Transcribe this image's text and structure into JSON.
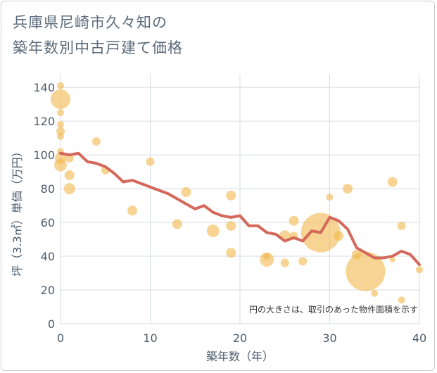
{
  "title_line1": "兵庫県尼崎市久々知の",
  "title_line2": "築年数別中古戸建て価格",
  "chart_data": {
    "type": "scatter",
    "xlabel": "築年数（年）",
    "ylabel": "坪（3.3㎡）単価（万円）",
    "xlim": [
      0,
      40
    ],
    "ylim": [
      0,
      148
    ],
    "xticks": [
      0,
      10,
      20,
      30,
      40
    ],
    "yticks": [
      0,
      20,
      40,
      60,
      80,
      100,
      120,
      140
    ],
    "annotation": "円の大きさは、取引のあった物件面積を示す",
    "colors": {
      "bubble": "#f2b84b",
      "line": "#d4685a",
      "grid": "#d6dde4",
      "text": "#4a5a6a"
    },
    "bubbles": [
      {
        "x": 0,
        "y": 141,
        "s": 5
      },
      {
        "x": 0,
        "y": 133,
        "s": 14
      },
      {
        "x": 0,
        "y": 125,
        "s": 5
      },
      {
        "x": 0,
        "y": 118,
        "s": 5
      },
      {
        "x": 0,
        "y": 114,
        "s": 6
      },
      {
        "x": 0,
        "y": 111,
        "s": 5
      },
      {
        "x": 0,
        "y": 102,
        "s": 5
      },
      {
        "x": 0,
        "y": 98,
        "s": 8
      },
      {
        "x": 0,
        "y": 94,
        "s": 9
      },
      {
        "x": 1,
        "y": 98,
        "s": 6
      },
      {
        "x": 1,
        "y": 88,
        "s": 7
      },
      {
        "x": 1,
        "y": 80,
        "s": 8
      },
      {
        "x": 4,
        "y": 108,
        "s": 6
      },
      {
        "x": 5,
        "y": 91,
        "s": 6
      },
      {
        "x": 8,
        "y": 67,
        "s": 7
      },
      {
        "x": 10,
        "y": 96,
        "s": 6
      },
      {
        "x": 13,
        "y": 59,
        "s": 7
      },
      {
        "x": 14,
        "y": 78,
        "s": 7
      },
      {
        "x": 17,
        "y": 55,
        "s": 9
      },
      {
        "x": 19,
        "y": 76,
        "s": 7
      },
      {
        "x": 19,
        "y": 58,
        "s": 7
      },
      {
        "x": 19,
        "y": 42,
        "s": 7
      },
      {
        "x": 23,
        "y": 38,
        "s": 10
      },
      {
        "x": 23,
        "y": 40,
        "s": 5
      },
      {
        "x": 25,
        "y": 52,
        "s": 8
      },
      {
        "x": 25,
        "y": 36,
        "s": 6
      },
      {
        "x": 26,
        "y": 61,
        "s": 7
      },
      {
        "x": 26,
        "y": 52,
        "s": 6
      },
      {
        "x": 27,
        "y": 37,
        "s": 6
      },
      {
        "x": 29,
        "y": 54,
        "s": 28
      },
      {
        "x": 30,
        "y": 75,
        "s": 5
      },
      {
        "x": 31,
        "y": 52,
        "s": 7
      },
      {
        "x": 32,
        "y": 80,
        "s": 7
      },
      {
        "x": 33,
        "y": 41,
        "s": 7
      },
      {
        "x": 34,
        "y": 31,
        "s": 28
      },
      {
        "x": 35,
        "y": 18,
        "s": 5
      },
      {
        "x": 37,
        "y": 84,
        "s": 7
      },
      {
        "x": 37,
        "y": 38,
        "s": 4
      },
      {
        "x": 38,
        "y": 58,
        "s": 6
      },
      {
        "x": 38,
        "y": 14,
        "s": 5
      },
      {
        "x": 40,
        "y": 32,
        "s": 5
      }
    ],
    "series": [
      {
        "x": [
          0,
          1,
          2,
          3,
          4,
          5,
          6,
          7,
          8,
          9,
          10,
          11,
          12,
          13,
          14,
          15,
          16,
          17,
          18,
          19,
          20,
          21,
          22,
          23,
          24,
          25,
          26,
          27,
          28,
          29,
          30,
          31,
          32,
          33,
          34,
          35,
          36,
          37,
          38,
          39,
          40
        ],
        "y": [
          101,
          100,
          101,
          96,
          95,
          93,
          89,
          84,
          85,
          83,
          81,
          79,
          77,
          74,
          71,
          68,
          70,
          66,
          64,
          63,
          64,
          58,
          58,
          54,
          53,
          49,
          51,
          49,
          55,
          54,
          63,
          61,
          56,
          45,
          42,
          39,
          39,
          40,
          43,
          41,
          35
        ]
      }
    ]
  }
}
